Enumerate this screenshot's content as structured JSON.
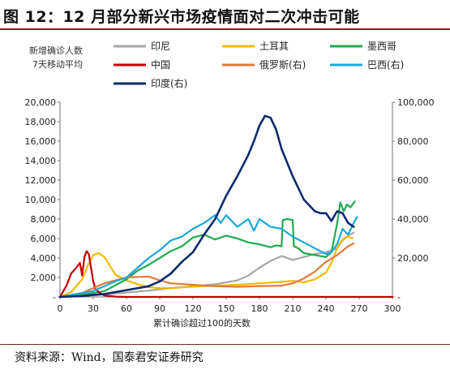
{
  "header": {
    "title": "图 12：12 月部分新兴市场疫情面对二次冲击可能"
  },
  "footer": {
    "source": "资料来源：Wind，国泰君安证券研究"
  },
  "chart_data": {
    "type": "line",
    "note_lines": [
      "新增确诊人数",
      "7天移动平均"
    ],
    "xlabel": "累计确诊超过100的天数",
    "xlim": [
      0,
      300
    ],
    "x_ticks": [
      0,
      30,
      60,
      90,
      120,
      150,
      180,
      210,
      240,
      270,
      300
    ],
    "ylim_left": [
      0,
      20000
    ],
    "y_ticks_left": [
      "-",
      "2,000",
      "4,000",
      "6,000",
      "8,000",
      "10,000",
      "12,000",
      "14,000",
      "16,000",
      "18,000",
      "20,000"
    ],
    "ylim_right": [
      0,
      100000
    ],
    "y_ticks_right": [
      "-",
      "20,000",
      "40,000",
      "60,000",
      "80,000",
      "100,000"
    ],
    "grid": false,
    "legend_position": "top",
    "series": [
      {
        "name": "印尼",
        "axis": "left",
        "color": "#a6a6a6",
        "x": [
          0,
          20,
          40,
          60,
          80,
          100,
          120,
          140,
          160,
          170,
          180,
          190,
          200,
          210,
          220,
          230,
          240,
          250,
          255,
          260,
          265
        ],
        "y": [
          0,
          150,
          250,
          450,
          650,
          900,
          1100,
          1300,
          1700,
          2200,
          3000,
          3700,
          4200,
          3800,
          4100,
          4400,
          4600,
          5000,
          5800,
          6300,
          6600
        ]
      },
      {
        "name": "土耳其",
        "axis": "left",
        "color": "#f5b800",
        "x": [
          0,
          10,
          20,
          25,
          30,
          35,
          40,
          45,
          50,
          60,
          70,
          80,
          90,
          100,
          120,
          140,
          160,
          180,
          200,
          210,
          220,
          230,
          240,
          245,
          250,
          253,
          256,
          260,
          264
        ],
        "y": [
          0,
          500,
          1800,
          3200,
          4300,
          4500,
          4100,
          3200,
          2300,
          1700,
          1300,
          1000,
          900,
          900,
          1050,
          1150,
          1250,
          1400,
          1550,
          1650,
          1500,
          1800,
          2500,
          3500,
          5000,
          5600,
          6000,
          6200,
          6000
        ]
      },
      {
        "name": "墨西哥",
        "axis": "left",
        "color": "#1faa4f",
        "x": [
          0,
          20,
          40,
          60,
          70,
          80,
          90,
          100,
          110,
          120,
          130,
          140,
          150,
          160,
          170,
          180,
          190,
          195,
          200,
          201,
          205,
          210,
          211,
          215,
          220,
          230,
          240,
          245,
          250,
          253,
          256,
          259,
          262,
          266
        ],
        "y": [
          0,
          200,
          600,
          1800,
          2700,
          3300,
          4000,
          4700,
          5200,
          6100,
          6400,
          5900,
          6300,
          6000,
          5600,
          5400,
          5100,
          5300,
          5200,
          7900,
          8000,
          7900,
          5200,
          5000,
          4500,
          4300,
          4100,
          4600,
          7500,
          9700,
          8800,
          9500,
          9200,
          9800
        ]
      },
      {
        "name": "中国",
        "axis": "left",
        "color": "#c00000",
        "x": [
          0,
          6,
          10,
          14,
          18,
          20,
          22,
          24,
          26,
          28,
          30,
          32,
          36,
          40,
          50,
          60,
          300
        ],
        "y": [
          0,
          1200,
          2400,
          2900,
          3500,
          2200,
          4100,
          4700,
          4400,
          3000,
          1600,
          800,
          400,
          150,
          30,
          0,
          0
        ]
      },
      {
        "name": "俄罗斯(右)",
        "axis": "right",
        "color": "#e27a3b",
        "x": [
          0,
          20,
          40,
          60,
          80,
          90,
          100,
          120,
          140,
          160,
          180,
          200,
          210,
          220,
          230,
          240,
          250,
          260,
          265
        ],
        "y": [
          0,
          2000,
          7000,
          10000,
          10500,
          8500,
          7000,
          6200,
          5500,
          5200,
          5600,
          5800,
          7000,
          9500,
          13000,
          18000,
          21500,
          26000,
          27500
        ]
      },
      {
        "name": "巴西(右)",
        "axis": "right",
        "color": "#1aa7dc",
        "x": [
          0,
          30,
          50,
          60,
          70,
          80,
          90,
          100,
          110,
          120,
          130,
          140,
          145,
          150,
          160,
          170,
          175,
          180,
          185,
          190,
          200,
          210,
          220,
          230,
          240,
          245,
          250,
          255,
          260,
          265,
          268
        ],
        "y": [
          0,
          3000,
          8000,
          10000,
          15000,
          20000,
          24000,
          29000,
          31000,
          35000,
          38000,
          42000,
          38000,
          42000,
          36000,
          40000,
          34000,
          40000,
          38000,
          36000,
          35000,
          31000,
          28000,
          25000,
          22000,
          23000,
          27000,
          35000,
          32000,
          38000,
          41000
        ]
      },
      {
        "name": "印度(右)",
        "axis": "right",
        "color": "#0d2a6e",
        "x": [
          0,
          20,
          40,
          60,
          80,
          90,
          100,
          110,
          120,
          130,
          140,
          150,
          160,
          170,
          175,
          180,
          185,
          190,
          195,
          200,
          210,
          220,
          230,
          235,
          240,
          245,
          250,
          255,
          260,
          265
        ],
        "y": [
          0,
          500,
          1500,
          3500,
          5500,
          8000,
          12000,
          18000,
          23000,
          32000,
          40000,
          52000,
          62000,
          73000,
          80000,
          88000,
          93000,
          92000,
          86000,
          76000,
          62000,
          50000,
          44000,
          43000,
          43000,
          39000,
          44000,
          43000,
          38000,
          36000
        ]
      }
    ]
  }
}
